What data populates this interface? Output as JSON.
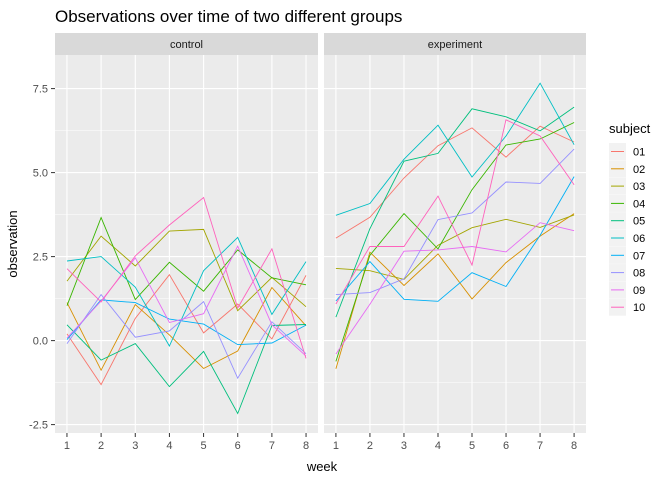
{
  "chart_data": {
    "type": "line",
    "title": "Observations over time of two different groups",
    "xlabel": "week",
    "ylabel": "observation",
    "x": [
      1,
      2,
      3,
      4,
      5,
      6,
      7,
      8
    ],
    "x_ticks": [
      "1",
      "2",
      "3",
      "4",
      "5",
      "6",
      "7",
      "8"
    ],
    "y_ticks": [
      -2.5,
      0.0,
      2.5,
      5.0,
      7.5
    ],
    "y_tick_labels": [
      "-2.5",
      "0.0",
      "2.5",
      "5.0",
      "7.5"
    ],
    "xlim": [
      0.65,
      8.35
    ],
    "ylim": [
      -2.75,
      8.5
    ],
    "grid": true,
    "legend": {
      "title": "subject",
      "position": "right",
      "entries": [
        "01",
        "02",
        "03",
        "04",
        "05",
        "06",
        "07",
        "08",
        "09",
        "10"
      ],
      "colors": [
        "#F8766D",
        "#D89000",
        "#A3A500",
        "#39B600",
        "#00BF7D",
        "#00BFC4",
        "#00B0F6",
        "#9590FF",
        "#E76BF3",
        "#FF62BC"
      ]
    },
    "panels": [
      {
        "label": "control",
        "series": [
          {
            "subject": "01",
            "values": [
              0.2,
              -1.31,
              0.66,
              1.96,
              0.23,
              1.09,
              0.05,
              1.94
            ]
          },
          {
            "subject": "02",
            "values": [
              1.13,
              -0.88,
              1.07,
              0.17,
              -0.83,
              -0.31,
              1.58,
              0.44
            ]
          },
          {
            "subject": "03",
            "values": [
              1.77,
              3.11,
              2.22,
              3.26,
              3.31,
              0.89,
              1.88,
              1.01
            ]
          },
          {
            "subject": "04",
            "values": [
              1.04,
              3.66,
              1.22,
              2.33,
              1.47,
              2.7,
              1.87,
              1.66
            ]
          },
          {
            "subject": "05",
            "values": [
              0.47,
              -0.58,
              -0.09,
              -1.37,
              -0.32,
              -2.17,
              0.45,
              0.48
            ]
          },
          {
            "subject": "06",
            "values": [
              2.37,
              2.5,
              1.59,
              -0.16,
              2.08,
              3.07,
              0.78,
              2.35
            ]
          },
          {
            "subject": "07",
            "values": [
              0.03,
              1.21,
              1.13,
              0.64,
              0.49,
              -0.12,
              -0.07,
              0.46
            ]
          },
          {
            "subject": "08",
            "values": [
              -0.09,
              1.37,
              0.1,
              0.29,
              1.16,
              -1.12,
              0.56,
              -0.39
            ]
          },
          {
            "subject": "09",
            "values": [
              0.08,
              1.18,
              2.46,
              0.54,
              0.8,
              2.81,
              0.47,
              -0.46
            ]
          },
          {
            "subject": "10",
            "values": [
              2.14,
              1.15,
              2.52,
              3.44,
              4.26,
              0.97,
              2.73,
              -0.53
            ]
          }
        ]
      },
      {
        "label": "experiment",
        "series": [
          {
            "subject": "01",
            "values": [
              3.05,
              3.67,
              4.84,
              5.8,
              6.33,
              5.46,
              6.38,
              5.91
            ]
          },
          {
            "subject": "02",
            "values": [
              -0.84,
              2.63,
              1.64,
              2.58,
              1.24,
              2.32,
              3.11,
              3.78
            ]
          },
          {
            "subject": "03",
            "values": [
              2.15,
              2.08,
              1.82,
              2.84,
              3.36,
              3.61,
              3.37,
              3.74
            ]
          },
          {
            "subject": "04",
            "values": [
              -0.62,
              2.54,
              3.78,
              2.73,
              4.49,
              5.82,
              6.0,
              6.49
            ]
          },
          {
            "subject": "05",
            "values": [
              0.7,
              3.33,
              5.34,
              5.57,
              6.9,
              6.66,
              6.24,
              6.95
            ]
          },
          {
            "subject": "06",
            "values": [
              3.73,
              4.08,
              5.4,
              6.41,
              4.87,
              6.09,
              7.66,
              5.83
            ]
          },
          {
            "subject": "07",
            "values": [
              1.18,
              2.35,
              1.23,
              1.17,
              2.02,
              1.61,
              3.13,
              4.88
            ]
          },
          {
            "subject": "08",
            "values": [
              1.37,
              1.43,
              1.84,
              3.6,
              3.8,
              4.72,
              4.68,
              5.7
            ]
          },
          {
            "subject": "09",
            "values": [
              -0.4,
              1.08,
              2.66,
              2.7,
              2.8,
              2.64,
              3.51,
              3.27
            ]
          },
          {
            "subject": "10",
            "values": [
              1.09,
              2.8,
              2.8,
              4.3,
              2.25,
              6.57,
              6.09,
              4.64
            ]
          }
        ]
      }
    ]
  }
}
